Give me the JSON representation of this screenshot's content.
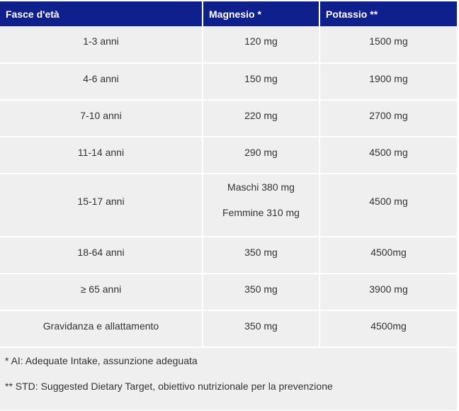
{
  "table": {
    "headers": [
      "Fasce d'età",
      "Magnesio *",
      "Potassio **"
    ],
    "rows": [
      {
        "age": "1-3 anni",
        "mg": "120 mg",
        "k": "1500 mg"
      },
      {
        "age": "4-6 anni",
        "mg": "150 mg",
        "k": "1900 mg"
      },
      {
        "age": "7-10 anni",
        "mg": "220 mg",
        "k": "2700 mg"
      },
      {
        "age": "11-14 anni",
        "mg": "290 mg",
        "k": "4500 mg"
      },
      {
        "age": "15-17 anni",
        "mg_male": "Maschi 380 mg",
        "mg_female": "Femmine 310 mg",
        "k": "4500 mg"
      },
      {
        "age": "18-64 anni",
        "mg": "350 mg",
        "k": "4500mg"
      },
      {
        "age": "≥ 65 anni",
        "mg": "350 mg",
        "k": "3900 mg"
      },
      {
        "age": "Gravidanza e allattamento",
        "mg": "350 mg",
        "k": "4500mg"
      }
    ]
  },
  "notes": {
    "ai": "* AI: Adequate Intake, assunzione adeguata",
    "std": "** STD: Suggested Dietary Target, obiettivo nutrizionale per la prevenzione"
  },
  "colors": {
    "header_bg": "#0f1f8c",
    "cell_bg": "#efefef"
  }
}
